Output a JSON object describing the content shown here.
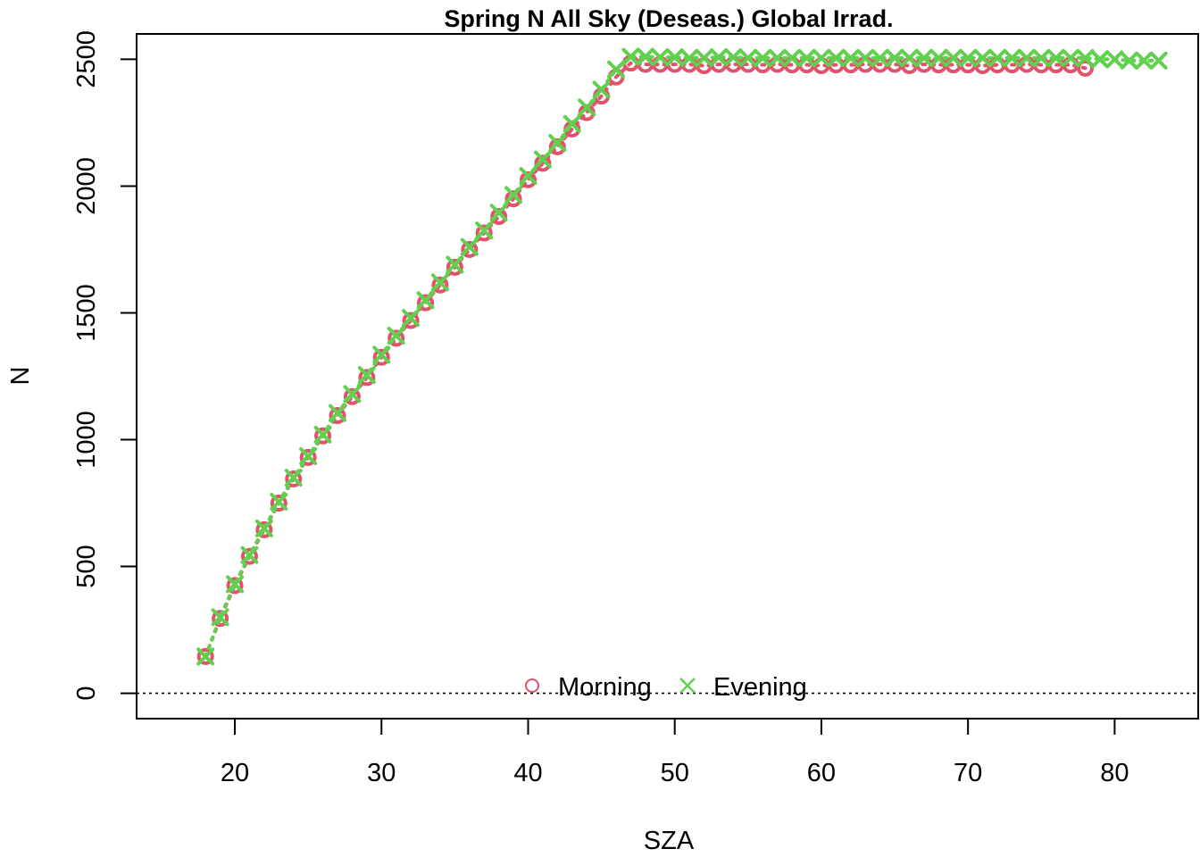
{
  "chart_data": {
    "type": "scatter",
    "title": "Spring N All Sky (Deseas.) Global Irrad.",
    "xlabel": "SZA",
    "ylabel": "N",
    "xlim": [
      13.3,
      85.7
    ],
    "ylim": [
      -100,
      2600
    ],
    "x_ticks": [
      20,
      30,
      40,
      50,
      60,
      70,
      80
    ],
    "y_ticks": [
      0,
      500,
      1000,
      1500,
      2000,
      2500
    ],
    "reference_line": {
      "y": 0,
      "style": "dotted"
    },
    "legend": {
      "placement": "bottom-center",
      "entries": [
        "Morning",
        "Evening"
      ]
    },
    "series": [
      {
        "name": "Morning",
        "marker": "circle",
        "line": "dotted",
        "color": "#DF536B",
        "x": [
          18,
          19,
          20,
          21,
          22,
          23,
          24,
          25,
          26,
          27,
          28,
          29,
          30,
          31,
          32,
          33,
          34,
          35,
          36,
          37,
          38,
          39,
          40,
          41,
          42,
          43,
          44,
          45,
          46,
          47,
          48,
          49,
          50,
          51,
          52,
          53,
          54,
          55,
          56,
          57,
          58,
          59,
          60,
          61,
          62,
          63,
          64,
          65,
          66,
          67,
          68,
          69,
          70,
          71,
          72,
          73,
          74,
          75,
          76,
          77,
          78
        ],
        "y": [
          145,
          295,
          425,
          540,
          645,
          750,
          845,
          930,
          1015,
          1095,
          1170,
          1245,
          1325,
          1400,
          1470,
          1540,
          1610,
          1680,
          1750,
          1815,
          1880,
          1950,
          2025,
          2090,
          2155,
          2225,
          2290,
          2355,
          2430,
          2485,
          2480,
          2480,
          2480,
          2480,
          2475,
          2480,
          2480,
          2480,
          2478,
          2480,
          2478,
          2478,
          2475,
          2478,
          2478,
          2480,
          2480,
          2480,
          2475,
          2480,
          2478,
          2478,
          2478,
          2475,
          2478,
          2478,
          2480,
          2478,
          2478,
          2478,
          2465
        ]
      },
      {
        "name": "Evening",
        "marker": "x",
        "line": "dotted",
        "color": "#61D04F",
        "x": [
          18,
          19,
          20,
          21,
          22,
          23,
          24,
          25,
          26,
          27,
          28,
          29,
          30,
          31,
          32,
          33,
          34,
          35,
          36,
          37,
          38,
          39,
          40,
          41,
          42,
          43,
          44,
          45,
          46,
          47,
          48,
          49,
          50,
          51,
          52,
          53,
          54,
          55,
          56,
          57,
          58,
          59,
          60,
          61,
          62,
          63,
          64,
          65,
          66,
          67,
          68,
          69,
          70,
          71,
          72,
          73,
          74,
          75,
          76,
          77,
          78,
          79,
          80,
          81,
          82,
          83
        ],
        "y": [
          145,
          300,
          430,
          545,
          650,
          755,
          850,
          935,
          1020,
          1105,
          1180,
          1255,
          1335,
          1410,
          1480,
          1550,
          1620,
          1690,
          1760,
          1825,
          1895,
          1965,
          2040,
          2105,
          2170,
          2245,
          2310,
          2380,
          2460,
          2510,
          2510,
          2508,
          2508,
          2505,
          2505,
          2508,
          2508,
          2505,
          2505,
          2505,
          2505,
          2505,
          2505,
          2505,
          2505,
          2505,
          2505,
          2505,
          2505,
          2505,
          2505,
          2505,
          2505,
          2505,
          2505,
          2505,
          2505,
          2505,
          2505,
          2505,
          2505,
          2500,
          2500,
          2495,
          2495,
          2495
        ]
      }
    ]
  }
}
